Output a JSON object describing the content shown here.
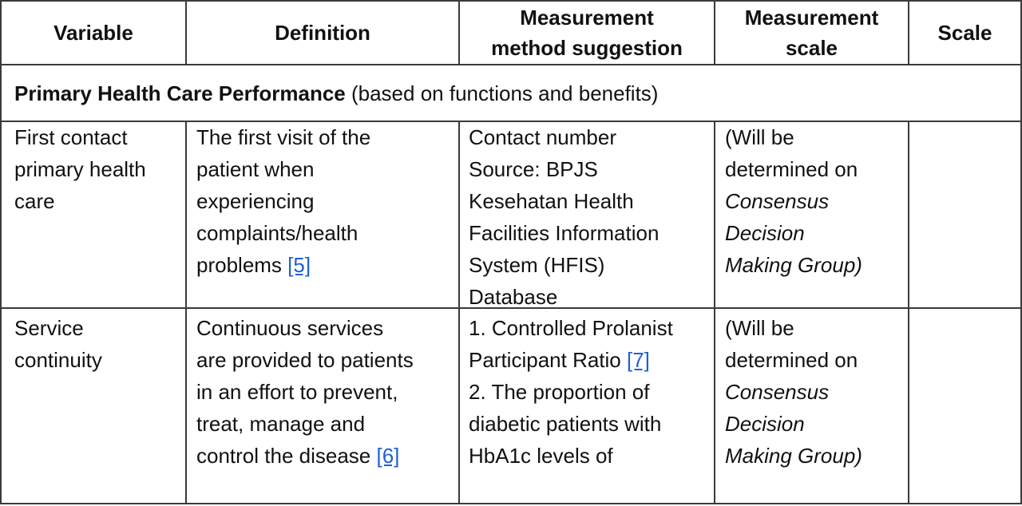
{
  "headers": {
    "variable": "Variable",
    "definition": "Definition",
    "method_l1": "Measurement",
    "method_l2": "method suggestion",
    "scale_l1": "Measurement",
    "scale_l2": "scale",
    "scale": "Scale"
  },
  "section": {
    "title_bold": "Primary Health Care Performance",
    "title_rest": " (based on functions and benefits)"
  },
  "rows": [
    {
      "variable": [
        "First contact",
        "primary health",
        "care"
      ],
      "definition": [
        "The first visit of the",
        "patient when",
        "experiencing",
        "complaints/health"
      ],
      "definition_last": "problems ",
      "definition_ref": "[5]",
      "method": [
        "Contact number",
        "Source: BPJS",
        "Kesehatan Health",
        "Facilities Information",
        "System (HFIS)",
        "Database"
      ],
      "scale_l1": "(Will be",
      "scale_l2": "determined on",
      "scale_i1": "Consensus",
      "scale_i2": "Decision",
      "scale_i3": "Making Group)"
    },
    {
      "variable": [
        "Service",
        "continuity"
      ],
      "definition": [
        "Continuous services",
        "are provided to patients",
        "in an effort to prevent,",
        "treat, manage and"
      ],
      "definition_last": "control the disease ",
      "definition_ref": "[6]",
      "method_l1": "1. Controlled Prolanist",
      "method_l2": "Participant Ratio ",
      "method_ref": "[7]",
      "method_l3": "2. The proportion of",
      "method_l4": "diabetic patients with",
      "method_l5": "HbA1c levels of",
      "scale_l1": "(Will be",
      "scale_l2": "determined on",
      "scale_i1": "Consensus",
      "scale_i2": "Decision",
      "scale_i3": "Making Group)"
    }
  ]
}
